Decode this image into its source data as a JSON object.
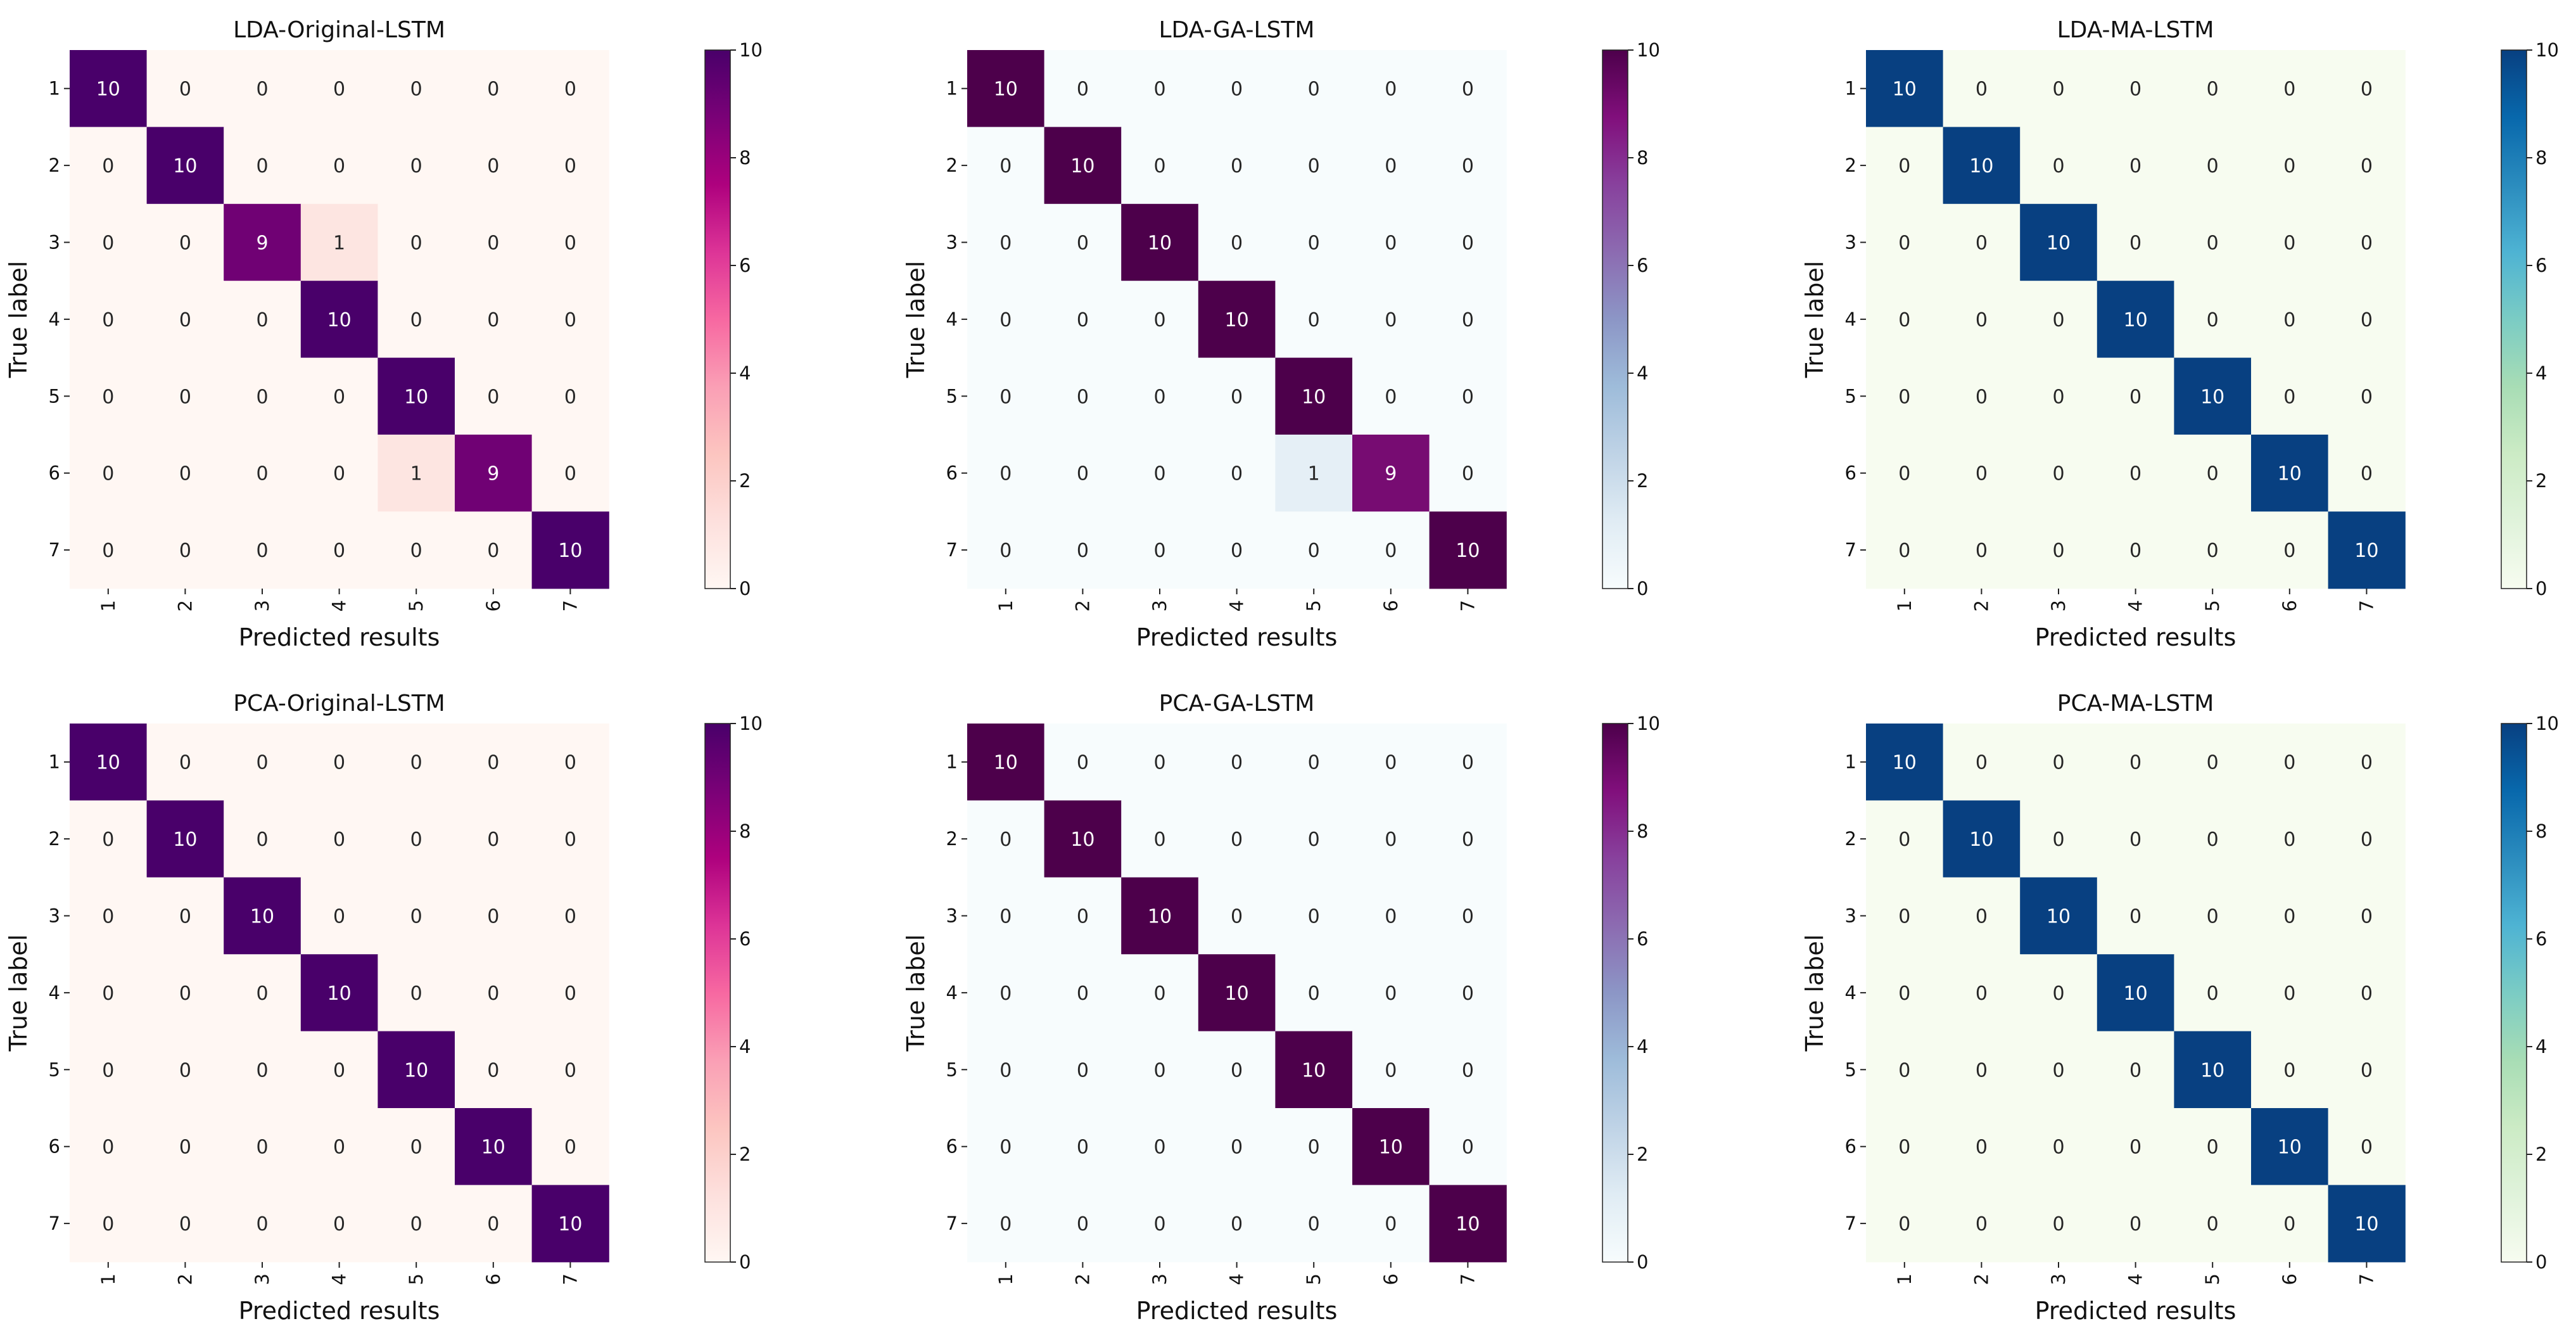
{
  "figure": {
    "panel_count": 6
  },
  "chart_data": [
    {
      "type": "heatmap",
      "title": "LDA-Original-LSTM",
      "xlabel": "Predicted results",
      "ylabel": "True label",
      "x_ticks": [
        "1",
        "2",
        "3",
        "4",
        "5",
        "6",
        "7"
      ],
      "y_ticks": [
        "1",
        "2",
        "3",
        "4",
        "5",
        "6",
        "7"
      ],
      "matrix": [
        [
          10,
          0,
          0,
          0,
          0,
          0,
          0
        ],
        [
          0,
          10,
          0,
          0,
          0,
          0,
          0
        ],
        [
          0,
          0,
          9,
          1,
          0,
          0,
          0
        ],
        [
          0,
          0,
          0,
          10,
          0,
          0,
          0
        ],
        [
          0,
          0,
          0,
          0,
          10,
          0,
          0
        ],
        [
          0,
          0,
          0,
          0,
          1,
          9,
          0
        ],
        [
          0,
          0,
          0,
          0,
          0,
          0,
          10
        ]
      ],
      "colormap": "RdPu",
      "vmin": 0,
      "vmax": 10,
      "colorbar_ticks": [
        "0",
        "2",
        "4",
        "6",
        "8",
        "10"
      ]
    },
    {
      "type": "heatmap",
      "title": "LDA-GA-LSTM",
      "xlabel": "Predicted results",
      "ylabel": "True label",
      "x_ticks": [
        "1",
        "2",
        "3",
        "4",
        "5",
        "6",
        "7"
      ],
      "y_ticks": [
        "1",
        "2",
        "3",
        "4",
        "5",
        "6",
        "7"
      ],
      "matrix": [
        [
          10,
          0,
          0,
          0,
          0,
          0,
          0
        ],
        [
          0,
          10,
          0,
          0,
          0,
          0,
          0
        ],
        [
          0,
          0,
          10,
          0,
          0,
          0,
          0
        ],
        [
          0,
          0,
          0,
          10,
          0,
          0,
          0
        ],
        [
          0,
          0,
          0,
          0,
          10,
          0,
          0
        ],
        [
          0,
          0,
          0,
          0,
          1,
          9,
          0
        ],
        [
          0,
          0,
          0,
          0,
          0,
          0,
          10
        ]
      ],
      "colormap": "BuPu",
      "vmin": 0,
      "vmax": 10,
      "colorbar_ticks": [
        "0",
        "2",
        "4",
        "6",
        "8",
        "10"
      ]
    },
    {
      "type": "heatmap",
      "title": "LDA-MA-LSTM",
      "xlabel": "Predicted results",
      "ylabel": "True label",
      "x_ticks": [
        "1",
        "2",
        "3",
        "4",
        "5",
        "6",
        "7"
      ],
      "y_ticks": [
        "1",
        "2",
        "3",
        "4",
        "5",
        "6",
        "7"
      ],
      "matrix": [
        [
          10,
          0,
          0,
          0,
          0,
          0,
          0
        ],
        [
          0,
          10,
          0,
          0,
          0,
          0,
          0
        ],
        [
          0,
          0,
          10,
          0,
          0,
          0,
          0
        ],
        [
          0,
          0,
          0,
          10,
          0,
          0,
          0
        ],
        [
          0,
          0,
          0,
          0,
          10,
          0,
          0
        ],
        [
          0,
          0,
          0,
          0,
          0,
          10,
          0
        ],
        [
          0,
          0,
          0,
          0,
          0,
          0,
          10
        ]
      ],
      "colormap": "GnBu",
      "vmin": 0,
      "vmax": 10,
      "colorbar_ticks": [
        "0",
        "2",
        "4",
        "6",
        "8",
        "10"
      ]
    },
    {
      "type": "heatmap",
      "title": "PCA-Original-LSTM",
      "xlabel": "Predicted results",
      "ylabel": "True label",
      "x_ticks": [
        "1",
        "2",
        "3",
        "4",
        "5",
        "6",
        "7"
      ],
      "y_ticks": [
        "1",
        "2",
        "3",
        "4",
        "5",
        "6",
        "7"
      ],
      "matrix": [
        [
          10,
          0,
          0,
          0,
          0,
          0,
          0
        ],
        [
          0,
          10,
          0,
          0,
          0,
          0,
          0
        ],
        [
          0,
          0,
          10,
          0,
          0,
          0,
          0
        ],
        [
          0,
          0,
          0,
          10,
          0,
          0,
          0
        ],
        [
          0,
          0,
          0,
          0,
          10,
          0,
          0
        ],
        [
          0,
          0,
          0,
          0,
          0,
          10,
          0
        ],
        [
          0,
          0,
          0,
          0,
          0,
          0,
          10
        ]
      ],
      "colormap": "RdPu",
      "vmin": 0,
      "vmax": 10,
      "colorbar_ticks": [
        "0",
        "2",
        "4",
        "6",
        "8",
        "10"
      ]
    },
    {
      "type": "heatmap",
      "title": "PCA-GA-LSTM",
      "xlabel": "Predicted results",
      "ylabel": "True label",
      "x_ticks": [
        "1",
        "2",
        "3",
        "4",
        "5",
        "6",
        "7"
      ],
      "y_ticks": [
        "1",
        "2",
        "3",
        "4",
        "5",
        "6",
        "7"
      ],
      "matrix": [
        [
          10,
          0,
          0,
          0,
          0,
          0,
          0
        ],
        [
          0,
          10,
          0,
          0,
          0,
          0,
          0
        ],
        [
          0,
          0,
          10,
          0,
          0,
          0,
          0
        ],
        [
          0,
          0,
          0,
          10,
          0,
          0,
          0
        ],
        [
          0,
          0,
          0,
          0,
          10,
          0,
          0
        ],
        [
          0,
          0,
          0,
          0,
          0,
          10,
          0
        ],
        [
          0,
          0,
          0,
          0,
          0,
          0,
          10
        ]
      ],
      "colormap": "BuPu",
      "vmin": 0,
      "vmax": 10,
      "colorbar_ticks": [
        "0",
        "2",
        "4",
        "6",
        "8",
        "10"
      ]
    },
    {
      "type": "heatmap",
      "title": "PCA-MA-LSTM",
      "xlabel": "Predicted results",
      "ylabel": "True label",
      "x_ticks": [
        "1",
        "2",
        "3",
        "4",
        "5",
        "6",
        "7"
      ],
      "y_ticks": [
        "1",
        "2",
        "3",
        "4",
        "5",
        "6",
        "7"
      ],
      "matrix": [
        [
          10,
          0,
          0,
          0,
          0,
          0,
          0
        ],
        [
          0,
          10,
          0,
          0,
          0,
          0,
          0
        ],
        [
          0,
          0,
          10,
          0,
          0,
          0,
          0
        ],
        [
          0,
          0,
          0,
          10,
          0,
          0,
          0
        ],
        [
          0,
          0,
          0,
          0,
          10,
          0,
          0
        ],
        [
          0,
          0,
          0,
          0,
          0,
          10,
          0
        ],
        [
          0,
          0,
          0,
          0,
          0,
          0,
          10
        ]
      ],
      "colormap": "GnBu",
      "vmin": 0,
      "vmax": 10,
      "colorbar_ticks": [
        "0",
        "2",
        "4",
        "6",
        "8",
        "10"
      ]
    }
  ],
  "colormaps": {
    "RdPu": [
      "#fff7f3",
      "#fde0dd",
      "#fcc5c0",
      "#fa9fb5",
      "#f768a1",
      "#dd3497",
      "#ae017e",
      "#7a0177",
      "#49006a"
    ],
    "BuPu": [
      "#f7fcfd",
      "#e0ecf4",
      "#bfd3e6",
      "#9ebcda",
      "#8c96c6",
      "#8c6bb1",
      "#88419d",
      "#810f7c",
      "#4d004b"
    ],
    "GnBu": [
      "#f7fcf0",
      "#e0f3db",
      "#ccebc5",
      "#a8ddb5",
      "#7bccc4",
      "#4eb3d3",
      "#2b8cbe",
      "#0868ac",
      "#084081"
    ]
  }
}
